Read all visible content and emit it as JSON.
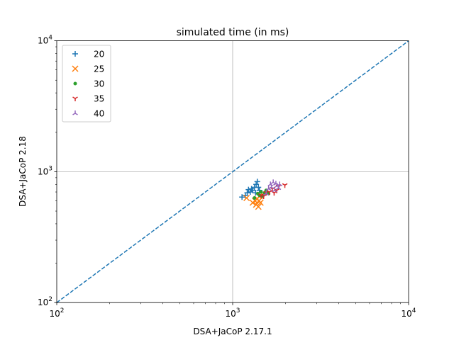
{
  "chart_data": {
    "type": "scatter",
    "title": "simulated time (in ms)",
    "xlabel": "DSA+JaCoP 2.17.1",
    "ylabel": "DSA+JaCoP 2.18",
    "xscale": "log",
    "yscale": "log",
    "xlim": [
      100,
      10000
    ],
    "ylim": [
      100,
      10000
    ],
    "x_ticks": [
      {
        "base": "10",
        "exp": "2",
        "value": 100
      },
      {
        "base": "10",
        "exp": "3",
        "value": 1000
      },
      {
        "base": "10",
        "exp": "4",
        "value": 10000
      }
    ],
    "y_ticks": [
      {
        "base": "10",
        "exp": "2",
        "value": 100
      },
      {
        "base": "10",
        "exp": "3",
        "value": 1000
      },
      {
        "base": "10",
        "exp": "4",
        "value": 10000
      }
    ],
    "grid": "major",
    "legend_position": "top-left",
    "diagonal": {
      "style": "dashed",
      "color": "#1f77b4",
      "from": [
        100,
        100
      ],
      "to": [
        10000,
        10000
      ]
    },
    "series": [
      {
        "name": "20",
        "marker": "plus",
        "color": "#1f77b4",
        "points": [
          [
            1130,
            640
          ],
          [
            1180,
            660
          ],
          [
            1210,
            690
          ],
          [
            1230,
            730
          ],
          [
            1260,
            700
          ],
          [
            1280,
            740
          ],
          [
            1300,
            720
          ],
          [
            1330,
            760
          ],
          [
            1350,
            690
          ],
          [
            1360,
            800
          ],
          [
            1380,
            840
          ],
          [
            1400,
            760
          ],
          [
            1420,
            720
          ]
        ]
      },
      {
        "name": "25",
        "marker": "x",
        "color": "#ff7f0e",
        "points": [
          [
            1200,
            630
          ],
          [
            1300,
            580
          ],
          [
            1340,
            600
          ],
          [
            1360,
            560
          ],
          [
            1380,
            620
          ],
          [
            1400,
            540
          ],
          [
            1410,
            600
          ],
          [
            1420,
            650
          ],
          [
            1440,
            580
          ]
        ]
      },
      {
        "name": "30",
        "marker": "dot",
        "color": "#2ca02c",
        "points": [
          [
            1330,
            630
          ],
          [
            1390,
            680
          ],
          [
            1420,
            660
          ],
          [
            1450,
            700
          ],
          [
            1480,
            650
          ],
          [
            1520,
            690
          ],
          [
            1550,
            720
          ],
          [
            1600,
            680
          ]
        ]
      },
      {
        "name": "35",
        "marker": "tri_down",
        "color": "#d62728",
        "points": [
          [
            1450,
            660
          ],
          [
            1500,
            650
          ],
          [
            1550,
            690
          ],
          [
            1620,
            700
          ],
          [
            1680,
            740
          ],
          [
            1720,
            690
          ],
          [
            1780,
            720
          ],
          [
            1820,
            770
          ],
          [
            1980,
            790
          ]
        ]
      },
      {
        "name": "40",
        "marker": "tri_up",
        "color": "#9467bd",
        "points": [
          [
            1550,
            680
          ],
          [
            1600,
            740
          ],
          [
            1640,
            800
          ],
          [
            1660,
            760
          ],
          [
            1700,
            830
          ],
          [
            1730,
            720
          ],
          [
            1760,
            810
          ],
          [
            1790,
            780
          ],
          [
            1820,
            750
          ],
          [
            1850,
            800
          ]
        ]
      }
    ]
  }
}
